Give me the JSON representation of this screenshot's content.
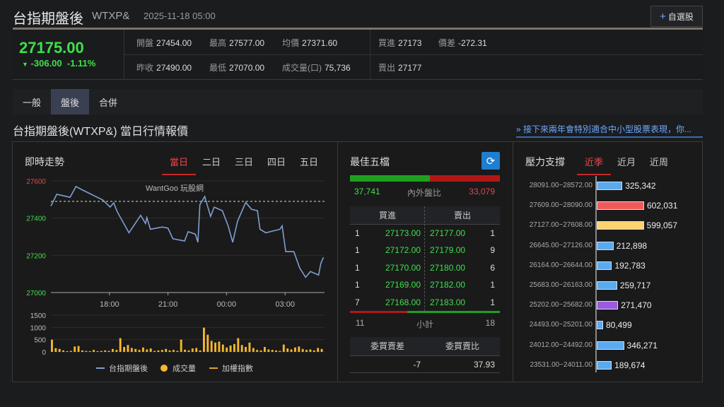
{
  "header": {
    "title": "台指期盤後",
    "code": "WTXP&",
    "datetime": "2025-11-18 05:00",
    "add_watchlist": "自選股",
    "add_icon": "plus-icon"
  },
  "quote": {
    "price": "27175.00",
    "change": "-306.00",
    "change_pct": "-1.11%",
    "direction_icon": "triangle-down-icon",
    "items": [
      {
        "label": "開盤",
        "value": "27454.00"
      },
      {
        "label": "最高",
        "value": "27577.00"
      },
      {
        "label": "均價",
        "value": "27371.60"
      },
      {
        "label": "昨收",
        "value": "27490.00"
      },
      {
        "label": "最低",
        "value": "27070.00"
      },
      {
        "label": "成交量(口)",
        "value": "75,736"
      },
      {
        "label": "買進",
        "value": "27173"
      },
      {
        "label": "價差",
        "value": "-272.31"
      },
      {
        "label": "賣出",
        "value": "27177"
      }
    ]
  },
  "tabs": [
    {
      "label": "一般"
    },
    {
      "label": "盤後",
      "active": true
    },
    {
      "label": "合併"
    }
  ],
  "section_title": "台指期盤後(WTXP&) 當日行情報價",
  "news_link": "» 接下來兩年會特別適合中小型股票表現，你...",
  "trend": {
    "title": "即時走勢",
    "ranges": [
      {
        "label": "當日",
        "active": true
      },
      {
        "label": "二日"
      },
      {
        "label": "三日"
      },
      {
        "label": "四日"
      },
      {
        "label": "五日"
      }
    ],
    "watermark": "WantGoo 玩股網",
    "legend": [
      {
        "label": "台指期盤後",
        "color": "#7f9fcf"
      },
      {
        "label": "成交量",
        "color": "#f5b82e"
      },
      {
        "label": "加權指數",
        "color": "#e0a030"
      }
    ]
  },
  "chart_data": {
    "type": "line",
    "title": "",
    "yticks": [
      "27600",
      "27400",
      "27200",
      "27000"
    ],
    "ylim": [
      27000,
      27600
    ],
    "xticks": [
      "18:00",
      "21:00",
      "00:00",
      "03:00"
    ],
    "xrange": [
      "15:00",
      "05:00"
    ],
    "reference_line": 27490,
    "series": [
      {
        "name": "台指期盤後",
        "color": "#7f9fcf",
        "points": [
          [
            "15:00",
            27465
          ],
          [
            "15:18",
            27528
          ],
          [
            "15:59",
            27512
          ],
          [
            "16:17",
            27570
          ],
          [
            "16:35",
            27553
          ],
          [
            "17:11",
            27522
          ],
          [
            "17:40",
            27497
          ],
          [
            "18:02",
            27459
          ],
          [
            "18:13",
            27482
          ],
          [
            "18:24",
            27434
          ],
          [
            "19:00",
            27321
          ],
          [
            "19:36",
            27415
          ],
          [
            "19:51",
            27371
          ],
          [
            "19:55",
            27403
          ],
          [
            "20:06",
            27340
          ],
          [
            "20:42",
            27352
          ],
          [
            "21:00",
            27346
          ],
          [
            "21:15",
            27289
          ],
          [
            "21:51",
            27277
          ],
          [
            "22:02",
            27327
          ],
          [
            "22:24",
            27314
          ],
          [
            "22:32",
            27270
          ],
          [
            "22:38",
            27472
          ],
          [
            "22:53",
            27516
          ],
          [
            "23:11",
            27409
          ],
          [
            "23:22",
            27459
          ],
          [
            "23:47",
            27440
          ],
          [
            "00:05",
            27358
          ],
          [
            "00:19",
            27270
          ],
          [
            "00:34",
            27384
          ],
          [
            "00:59",
            27484
          ],
          [
            "01:17",
            27447
          ],
          [
            "01:35",
            27440
          ],
          [
            "01:43",
            27340
          ],
          [
            "02:01",
            27321
          ],
          [
            "02:44",
            27340
          ],
          [
            "02:51",
            27358
          ],
          [
            "03:02",
            27220
          ],
          [
            "03:27",
            27220
          ],
          [
            "03:45",
            27132
          ],
          [
            "04:03",
            27082
          ],
          [
            "04:18",
            27113
          ],
          [
            "04:43",
            27094
          ],
          [
            "04:50",
            27157
          ],
          [
            "04:58",
            27189
          ]
        ]
      }
    ],
    "volume": {
      "yticks": [
        "1500",
        "1000",
        "500",
        "0"
      ],
      "ylim": [
        0,
        1500
      ],
      "color": "#f5b82e",
      "values": [
        500,
        150,
        120,
        60,
        30,
        40,
        220,
        240,
        60,
        40,
        30,
        80,
        30,
        40,
        60,
        40,
        120,
        80,
        560,
        200,
        280,
        160,
        120,
        80,
        180,
        100,
        140,
        40,
        60,
        80,
        120,
        60,
        80,
        40,
        500,
        90,
        60,
        140,
        160,
        60,
        990,
        700,
        450,
        380,
        420,
        300,
        180,
        260,
        320,
        560,
        280,
        200,
        380,
        160,
        80,
        60,
        200,
        100,
        80,
        60,
        40,
        300,
        140,
        100,
        180,
        220,
        120,
        80,
        100,
        60,
        160,
        120
      ]
    }
  },
  "orderbook": {
    "title": "最佳五檔",
    "refresh_icon": "refresh-icon",
    "inner": "37,741",
    "outer": "33,079",
    "ratio_label": "內外盤比",
    "inner_ratio": 0.533,
    "headers": [
      "買進",
      "賣出"
    ],
    "rows": [
      [
        "1",
        "27173.00",
        "27177.00",
        "1"
      ],
      [
        "1",
        "27172.00",
        "27179.00",
        "9"
      ],
      [
        "1",
        "27170.00",
        "27180.00",
        "6"
      ],
      [
        "1",
        "27169.00",
        "27182.00",
        "1"
      ],
      [
        "7",
        "27168.00",
        "27183.00",
        "1"
      ]
    ],
    "subtotal_label": "小計",
    "bid_total": "11",
    "ask_total": "18",
    "bid_total_ratio": 0.38,
    "diff_label": "委買賣差",
    "ratio2_label": "委買賣比",
    "diff": "-7",
    "ratio2": "37.93"
  },
  "support": {
    "title": "壓力支撐",
    "tabs": [
      {
        "label": "近季",
        "active": true
      },
      {
        "label": "近月"
      },
      {
        "label": "近周"
      }
    ],
    "chart_data": {
      "type": "bar",
      "orientation": "horizontal",
      "categories": [
        "28091.00~28572.00",
        "27609.00~28090.00",
        "27127.00~27608.00",
        "26645.00~27126.00",
        "26164.00~26644.00",
        "25683.00~26163.00",
        "25202.00~25682.00",
        "24493.00~25201.00",
        "24012.00~24492.00",
        "23531.00~24011.00"
      ],
      "values": [
        325342,
        602031,
        599057,
        212898,
        192783,
        259717,
        271470,
        80499,
        346271,
        189674
      ],
      "labels": [
        "325,342",
        "602,031",
        "599,057",
        "212,898",
        "192,783",
        "259,717",
        "271,470",
        "80,499",
        "346,271",
        "189,674"
      ],
      "colors": [
        "#5aaaf0",
        "#f05a5a",
        "#ffd270",
        "#5aaaf0",
        "#5aaaf0",
        "#5aaaf0",
        "#9a5ae0",
        "#5aaaf0",
        "#5aaaf0",
        "#5aaaf0"
      ]
    }
  }
}
